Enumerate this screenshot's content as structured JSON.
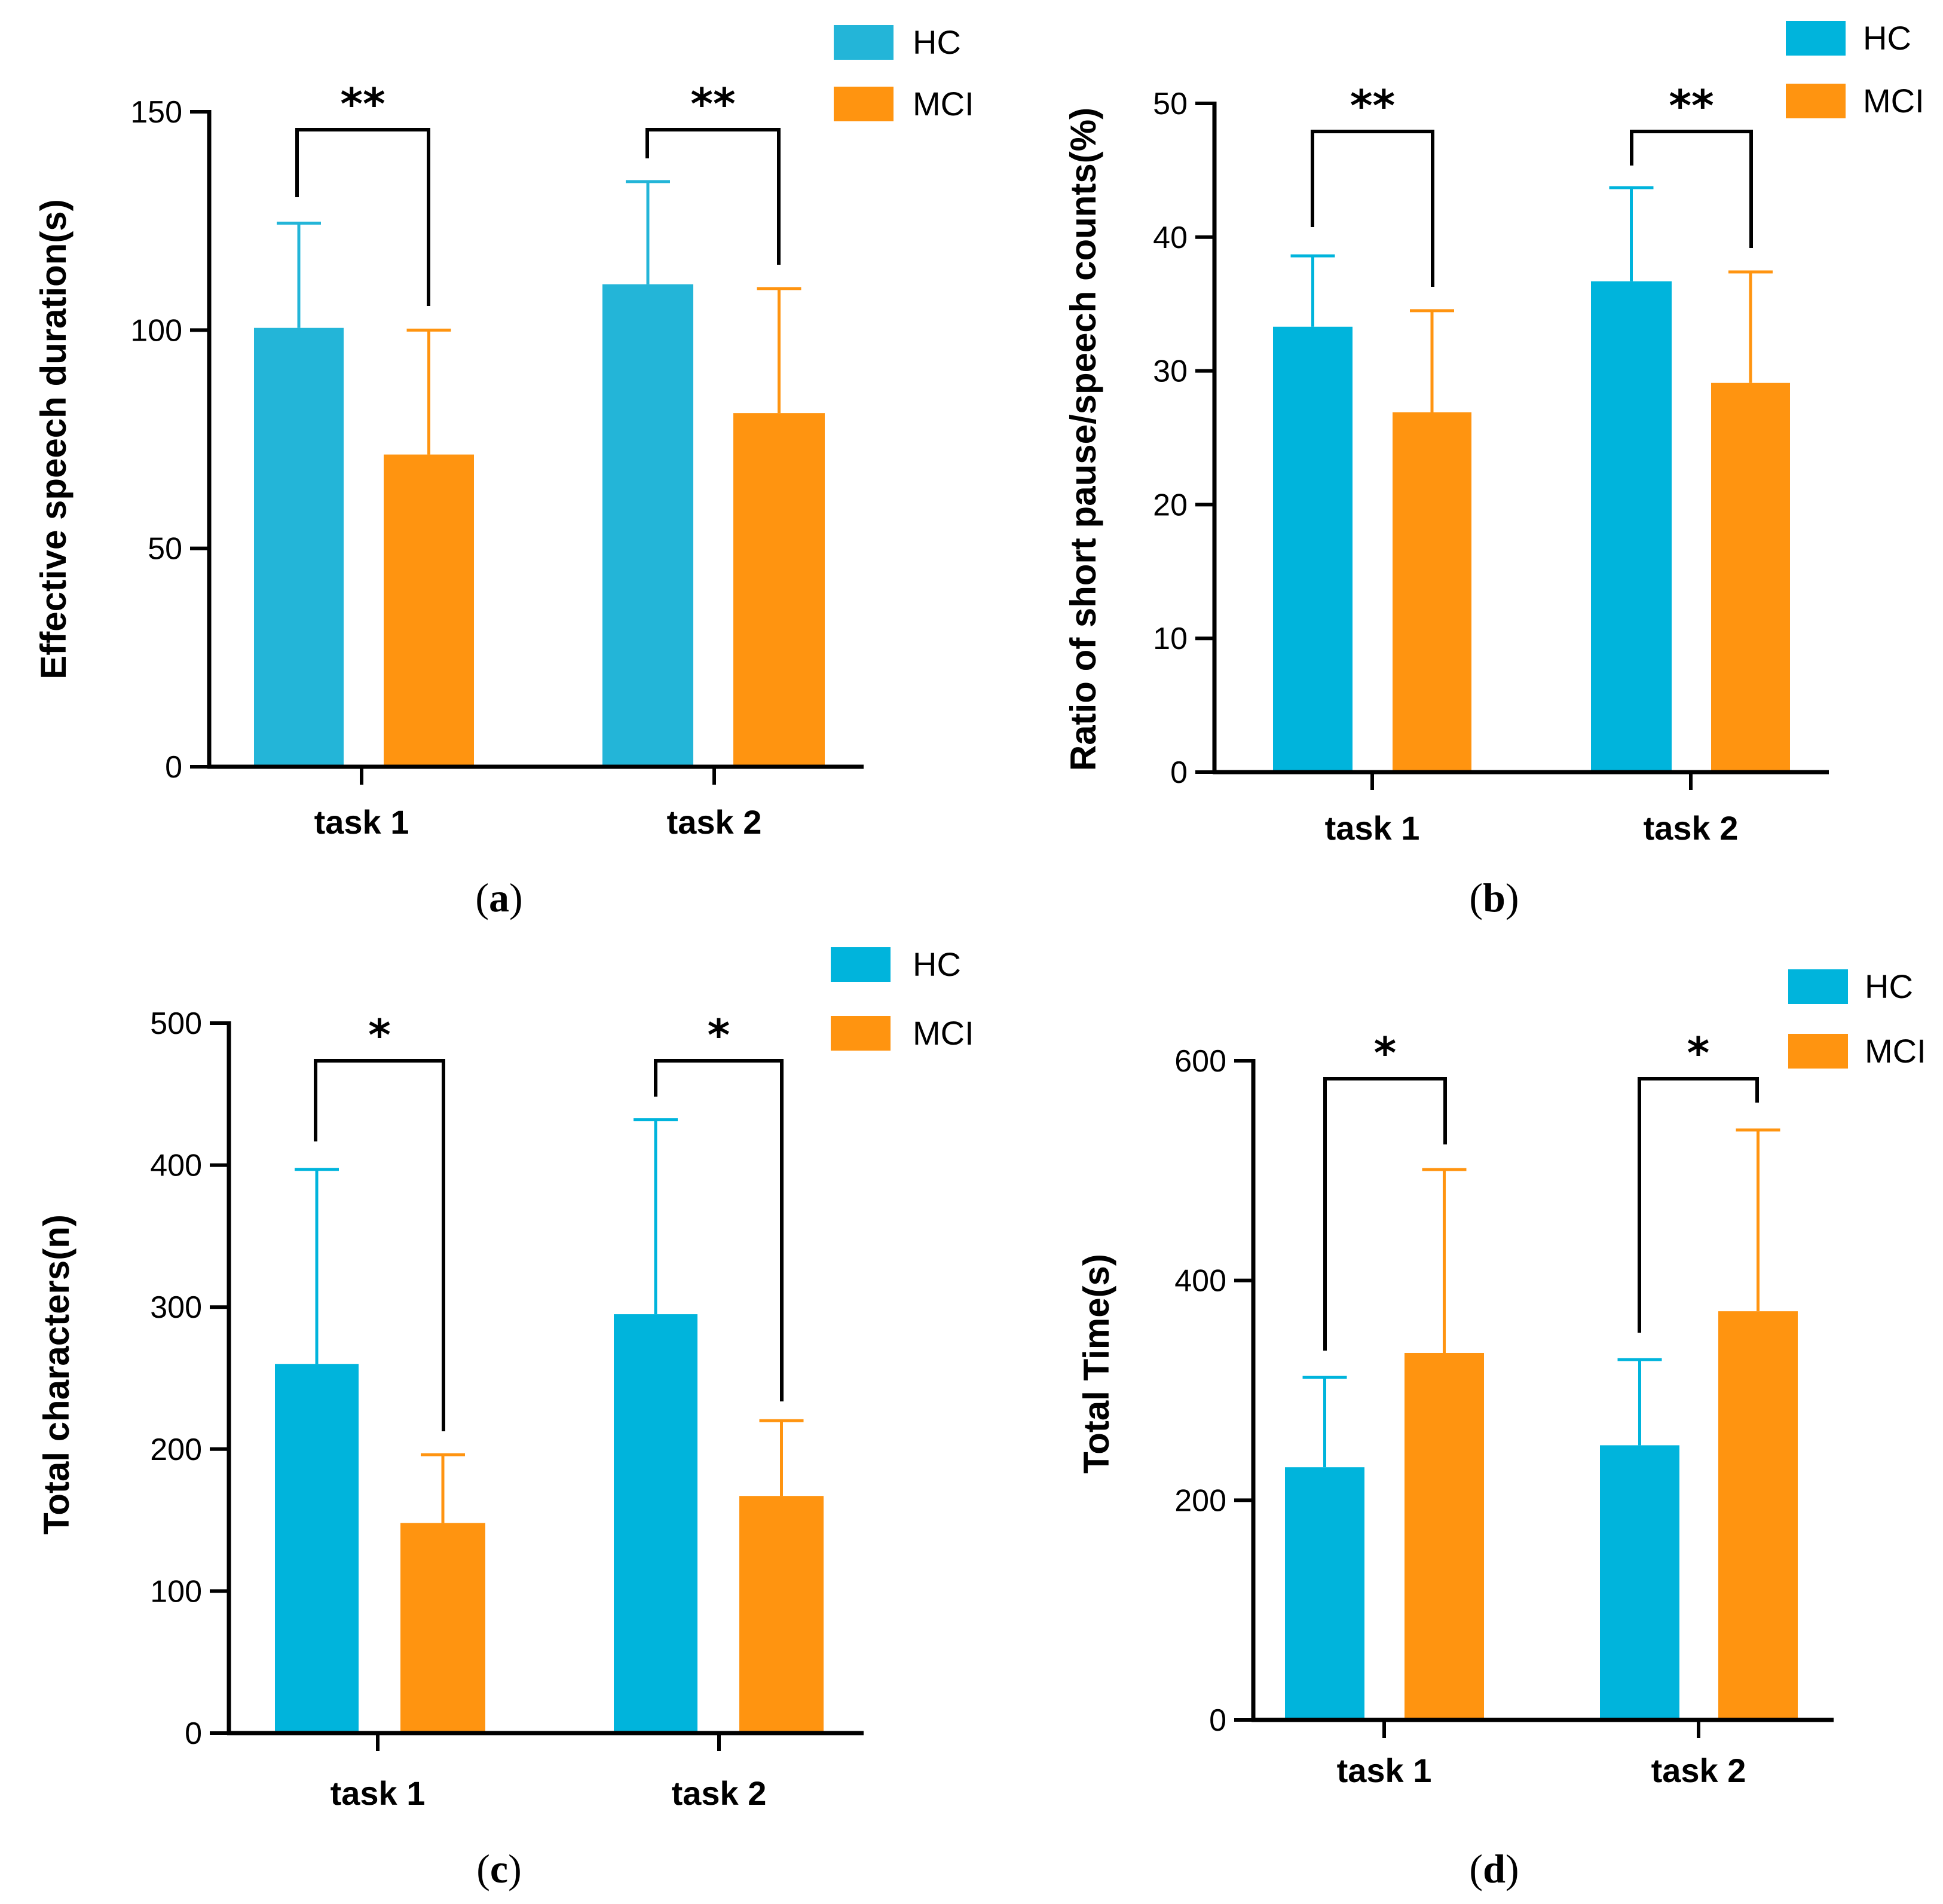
{
  "colors": {
    "hc_a": "#23b5d8",
    "hc": "#00b4dc",
    "mci": "#ff9410",
    "axis": "#000000"
  },
  "legend": [
    "HC",
    "MCI"
  ],
  "chart_data": [
    {
      "panel": "a",
      "type": "bar",
      "ylabel": "Effective speech duration(s)",
      "categories": [
        "task 1",
        "task 2"
      ],
      "ylim": [
        0,
        150
      ],
      "yticks": [
        0,
        50,
        100,
        150
      ],
      "series": [
        {
          "name": "HC",
          "values": [
            100.5,
            110.5
          ],
          "error": [
            24,
            23.5
          ]
        },
        {
          "name": "MCI",
          "values": [
            71.5,
            81
          ],
          "error": [
            28.5,
            28.5
          ]
        }
      ],
      "significance": [
        "**",
        "**"
      ]
    },
    {
      "panel": "b",
      "type": "bar",
      "ylabel": "Ratio of short pause/speech counts(%)",
      "categories": [
        "task 1",
        "task 2"
      ],
      "ylim": [
        0,
        50
      ],
      "yticks": [
        0,
        10,
        20,
        30,
        40,
        50
      ],
      "series": [
        {
          "name": "HC",
          "values": [
            33.3,
            36.7
          ],
          "error": [
            5.3,
            7
          ]
        },
        {
          "name": "MCI",
          "values": [
            26.9,
            29.1
          ],
          "error": [
            7.6,
            8.3
          ]
        }
      ],
      "significance": [
        "**",
        "**"
      ]
    },
    {
      "panel": "c",
      "type": "bar",
      "ylabel": "Total characters(n)",
      "categories": [
        "task 1",
        "task 2"
      ],
      "ylim": [
        0,
        500
      ],
      "yticks": [
        0,
        100,
        200,
        300,
        400,
        500
      ],
      "series": [
        {
          "name": "HC",
          "values": [
            260,
            295
          ],
          "error": [
            137,
            137
          ]
        },
        {
          "name": "MCI",
          "values": [
            148,
            167
          ],
          "error": [
            48,
            53
          ]
        }
      ],
      "significance": [
        "*",
        "*"
      ]
    },
    {
      "panel": "d",
      "type": "bar",
      "ylabel": "Total Time(s)",
      "categories": [
        "task 1",
        "task 2"
      ],
      "ylim": [
        0,
        600
      ],
      "yticks": [
        0,
        200,
        400,
        600
      ],
      "series": [
        {
          "name": "HC",
          "values": [
            230,
            250
          ],
          "error": [
            82,
            78
          ]
        },
        {
          "name": "MCI",
          "values": [
            334,
            372
          ],
          "error": [
            167,
            165
          ]
        }
      ],
      "significance": [
        "*",
        "*"
      ]
    }
  ]
}
